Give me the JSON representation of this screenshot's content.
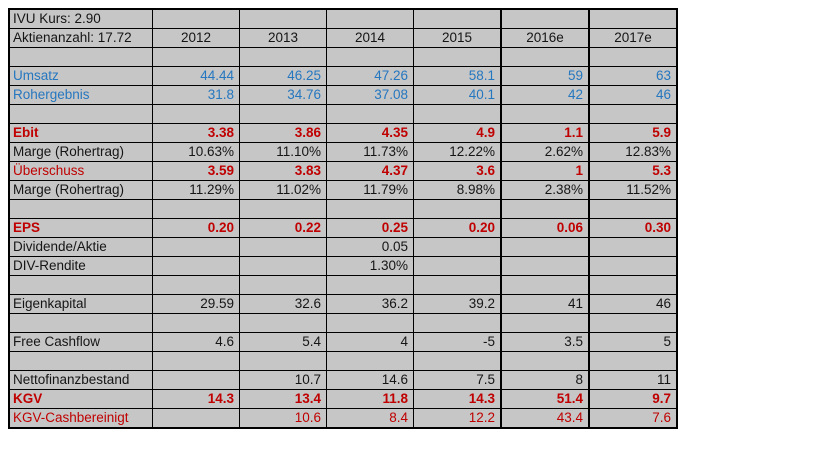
{
  "title": "IVU Kennzahlen Tabelle",
  "colors": {
    "cell_fill": "#c6c6c6",
    "blue_text": "#2577c0",
    "red_text": "#c00000",
    "black_text": "#151515",
    "grid_border": "#000000",
    "page_background": "#ffffff"
  },
  "header": {
    "kurs_label": "IVU Kurs: 2.90",
    "shares_label": "Aktienanzahl: 17.72"
  },
  "columns": [
    "2012",
    "2013",
    "2014",
    "2015",
    "2016e",
    "2017e"
  ],
  "rows": [
    {
      "label": "IVU Kurs: 2.90",
      "values": [
        "",
        "",
        "",
        "",
        "",
        ""
      ],
      "color": "black",
      "bold_label": false,
      "bold_values": false,
      "type": "kurs"
    },
    {
      "label": "Aktienanzahl: 17.72",
      "values": [
        "2012",
        "2013",
        "2014",
        "2015",
        "2016e",
        "2017e"
      ],
      "color": "black",
      "bold_label": false,
      "bold_values": false,
      "type": "header"
    },
    {
      "label": "",
      "values": [
        "",
        "",
        "",
        "",
        "",
        ""
      ],
      "color": "black",
      "bold_label": false,
      "bold_values": false,
      "type": "spacer"
    },
    {
      "label": "Umsatz",
      "values": [
        "44.44",
        "46.25",
        "47.26",
        "58.1",
        "59",
        "63"
      ],
      "color": "blue",
      "bold_label": false,
      "bold_values": false,
      "type": "data"
    },
    {
      "label": "Rohergebnis",
      "values": [
        "31.8",
        "34.76",
        "37.08",
        "40.1",
        "42",
        "46"
      ],
      "color": "blue",
      "bold_label": false,
      "bold_values": false,
      "type": "data"
    },
    {
      "label": "",
      "values": [
        "",
        "",
        "",
        "",
        "",
        ""
      ],
      "color": "black",
      "bold_label": false,
      "bold_values": false,
      "type": "spacer"
    },
    {
      "label": "Ebit",
      "values": [
        "3.38",
        "3.86",
        "4.35",
        "4.9",
        "1.1",
        "5.9"
      ],
      "color": "red",
      "bold_label": true,
      "bold_values": true,
      "type": "data"
    },
    {
      "label": "Marge (Rohertrag)",
      "values": [
        "10.63%",
        "11.10%",
        "11.73%",
        "12.22%",
        "2.62%",
        "12.83%"
      ],
      "color": "black",
      "bold_label": false,
      "bold_values": false,
      "type": "data"
    },
    {
      "label": "Überschuss",
      "values": [
        "3.59",
        "3.83",
        "4.37",
        "3.6",
        "1",
        "5.3"
      ],
      "color": "red",
      "bold_label": false,
      "bold_values": true,
      "type": "data"
    },
    {
      "label": "Marge (Rohertrag)",
      "values": [
        "11.29%",
        "11.02%",
        "11.79%",
        "8.98%",
        "2.38%",
        "11.52%"
      ],
      "color": "black",
      "bold_label": false,
      "bold_values": false,
      "type": "data"
    },
    {
      "label": "",
      "values": [
        "",
        "",
        "",
        "",
        "",
        ""
      ],
      "color": "black",
      "bold_label": false,
      "bold_values": false,
      "type": "spacer"
    },
    {
      "label": "EPS",
      "values": [
        "0.20",
        "0.22",
        "0.25",
        "0.20",
        "0.06",
        "0.30"
      ],
      "color": "red",
      "bold_label": true,
      "bold_values": true,
      "type": "data"
    },
    {
      "label": "Dividende/Aktie",
      "values": [
        "",
        "",
        "0.05",
        "",
        "",
        ""
      ],
      "color": "black",
      "bold_label": false,
      "bold_values": false,
      "type": "data"
    },
    {
      "label": "DIV-Rendite",
      "values": [
        "",
        "",
        "1.30%",
        "",
        "",
        ""
      ],
      "color": "black",
      "bold_label": false,
      "bold_values": false,
      "type": "data"
    },
    {
      "label": "",
      "values": [
        "",
        "",
        "",
        "",
        "",
        ""
      ],
      "color": "black",
      "bold_label": false,
      "bold_values": false,
      "type": "spacer"
    },
    {
      "label": "Eigenkapital",
      "values": [
        "29.59",
        "32.6",
        "36.2",
        "39.2",
        "41",
        "46"
      ],
      "color": "black",
      "bold_label": false,
      "bold_values": false,
      "type": "data"
    },
    {
      "label": "",
      "values": [
        "",
        "",
        "",
        "",
        "",
        ""
      ],
      "color": "black",
      "bold_label": false,
      "bold_values": false,
      "type": "spacer"
    },
    {
      "label": "Free Cashflow",
      "values": [
        "4.6",
        "5.4",
        "4",
        "-5",
        "3.5",
        "5"
      ],
      "color": "black",
      "bold_label": false,
      "bold_values": false,
      "type": "data"
    },
    {
      "label": "",
      "values": [
        "",
        "",
        "",
        "",
        "",
        ""
      ],
      "color": "black",
      "bold_label": false,
      "bold_values": false,
      "type": "spacer"
    },
    {
      "label": "Nettofinanzbestand",
      "values": [
        "",
        "10.7",
        "14.6",
        "7.5",
        "8",
        "11"
      ],
      "color": "black",
      "bold_label": false,
      "bold_values": false,
      "type": "data"
    },
    {
      "label": "KGV",
      "values": [
        "14.3",
        "13.4",
        "11.8",
        "14.3",
        "51.4",
        "9.7"
      ],
      "color": "red",
      "bold_label": true,
      "bold_values": true,
      "type": "data"
    },
    {
      "label": "KGV-Cashbereinigt",
      "values": [
        "",
        "10.6",
        "8.4",
        "12.2",
        "43.4",
        "7.6"
      ],
      "color": "red",
      "bold_label": false,
      "bold_values": false,
      "type": "data"
    }
  ]
}
